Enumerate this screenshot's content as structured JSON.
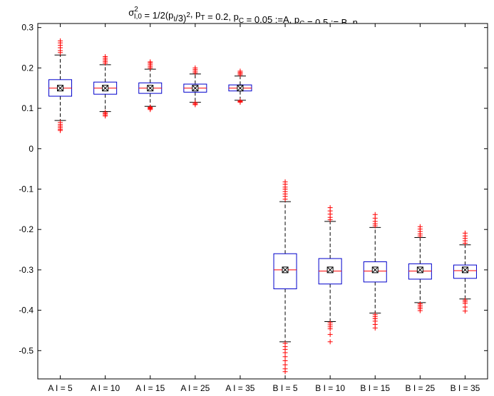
{
  "chart_data": {
    "type": "box",
    "title": {
      "segments": [
        {
          "t": "σ"
        },
        {
          "sup": "2",
          "sub": "I,0"
        },
        {
          "t": " = 1/2(p"
        },
        {
          "sub": "I"
        },
        {
          "t": "/3)"
        },
        {
          "sup": "2"
        },
        {
          "t": ", p"
        },
        {
          "sub": "T"
        },
        {
          "t": " = 0.2, p"
        },
        {
          "sub": "C"
        },
        {
          "t": " = 0.05 :=A,  p"
        },
        {
          "sub": "C"
        },
        {
          "t": " = 0.5 := B, n"
        },
        {
          "sub": "T,i"
        },
        {
          "t": "=n"
        },
        {
          "sub": "C,i"
        },
        {
          "t": "= 100"
        }
      ]
    },
    "xlabel": "",
    "ylabel": "",
    "ylim": [
      -0.57,
      0.31
    ],
    "yticks": [
      -0.5,
      -0.4,
      -0.3,
      -0.2,
      -0.1,
      0,
      0.1,
      0.2,
      0.3
    ],
    "ytick_labels": [
      "-0.5",
      "-0.4",
      "-0.3",
      "-0.2",
      "-0.1",
      "0",
      "0.1",
      "0.2",
      "0.3"
    ],
    "grid": false,
    "colors": {
      "box": "#0000cc",
      "median": "#ff0000",
      "outlier": "#ff0000",
      "whisker": "#000000",
      "mean_marker": "#000000"
    },
    "categories": [
      "A I = 5",
      "A I = 10",
      "A I = 15",
      "A I = 25",
      "A I = 35",
      "B I = 5",
      "B I = 10",
      "B I = 15",
      "B I = 25",
      "B I = 35"
    ],
    "boxes": [
      {
        "q1": 0.13,
        "median": 0.15,
        "q3": 0.171,
        "whisker_low": 0.07,
        "whisker_high": 0.232,
        "mean": 0.15,
        "outliers": [
          0.238,
          0.243,
          0.25,
          0.256,
          0.262,
          0.267,
          0.065,
          0.06,
          0.056,
          0.052,
          0.048,
          0.045
        ]
      },
      {
        "q1": 0.135,
        "median": 0.15,
        "q3": 0.165,
        "whisker_low": 0.092,
        "whisker_high": 0.208,
        "mean": 0.15,
        "outliers": [
          0.212,
          0.216,
          0.22,
          0.224,
          0.228,
          0.09,
          0.087,
          0.084,
          0.081
        ]
      },
      {
        "q1": 0.137,
        "median": 0.15,
        "q3": 0.163,
        "whisker_low": 0.105,
        "whisker_high": 0.197,
        "mean": 0.15,
        "outliers": [
          0.2,
          0.204,
          0.208,
          0.212,
          0.215,
          0.103,
          0.101,
          0.099,
          0.097
        ]
      },
      {
        "q1": 0.14,
        "median": 0.15,
        "q3": 0.16,
        "whisker_low": 0.115,
        "whisker_high": 0.185,
        "mean": 0.15,
        "outliers": [
          0.188,
          0.192,
          0.196,
          0.2,
          0.114,
          0.111,
          0.109
        ]
      },
      {
        "q1": 0.143,
        "median": 0.15,
        "q3": 0.158,
        "whisker_low": 0.12,
        "whisker_high": 0.18,
        "mean": 0.15,
        "outliers": [
          0.183,
          0.186,
          0.189,
          0.192,
          0.119,
          0.117,
          0.115
        ]
      },
      {
        "q1": -0.347,
        "median": -0.3,
        "q3": -0.26,
        "whisker_low": -0.478,
        "whisker_high": -0.131,
        "mean": -0.3,
        "outliers": [
          -0.125,
          -0.118,
          -0.112,
          -0.106,
          -0.1,
          -0.095,
          -0.088,
          -0.082,
          -0.482,
          -0.49,
          -0.497,
          -0.505,
          -0.515,
          -0.525,
          -0.535,
          -0.545,
          -0.552
        ]
      },
      {
        "q1": -0.335,
        "median": -0.303,
        "q3": -0.272,
        "whisker_low": -0.428,
        "whisker_high": -0.18,
        "mean": -0.3,
        "outliers": [
          -0.176,
          -0.17,
          -0.162,
          -0.154,
          -0.146,
          -0.431,
          -0.436,
          -0.441,
          -0.446,
          -0.46,
          -0.478
        ]
      },
      {
        "q1": -0.33,
        "median": -0.303,
        "q3": -0.28,
        "whisker_low": -0.407,
        "whisker_high": -0.195,
        "mean": -0.3,
        "outliers": [
          -0.191,
          -0.186,
          -0.18,
          -0.172,
          -0.163,
          -0.411,
          -0.416,
          -0.421,
          -0.427,
          -0.435,
          -0.444
        ]
      },
      {
        "q1": -0.323,
        "median": -0.303,
        "q3": -0.285,
        "whisker_low": -0.381,
        "whisker_high": -0.22,
        "mean": -0.3,
        "outliers": [
          -0.216,
          -0.211,
          -0.205,
          -0.199,
          -0.193,
          -0.384,
          -0.388,
          -0.392,
          -0.396,
          -0.401
        ]
      },
      {
        "q1": -0.321,
        "median": -0.302,
        "q3": -0.288,
        "whisker_low": -0.372,
        "whisker_high": -0.238,
        "mean": -0.3,
        "outliers": [
          -0.234,
          -0.228,
          -0.222,
          -0.216,
          -0.209,
          -0.375,
          -0.379,
          -0.383,
          -0.392,
          -0.402
        ]
      }
    ]
  }
}
